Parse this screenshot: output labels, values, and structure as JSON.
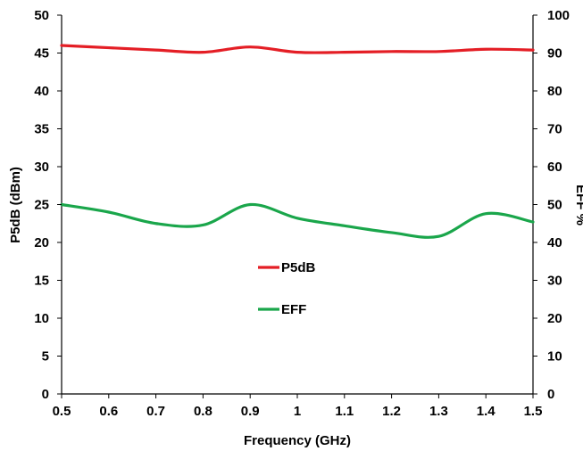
{
  "chart_data": {
    "type": "line",
    "title": "",
    "xlabel": "Frequency (GHz)",
    "ylabel": "P5dB (dBm)",
    "y2label": "EFF %",
    "xlim": [
      0.5,
      1.5
    ],
    "ylim": [
      0,
      50
    ],
    "y2lim": [
      0,
      100
    ],
    "x_ticks": [
      "0.5",
      "0.6",
      "0.7",
      "0.8",
      "0.9",
      "1",
      "1.1",
      "1.2",
      "1.3",
      "1.4",
      "1.5"
    ],
    "y_ticks": [
      "0",
      "5",
      "10",
      "15",
      "20",
      "25",
      "30",
      "35",
      "40",
      "45",
      "50"
    ],
    "y2_ticks": [
      "0",
      "10",
      "20",
      "30",
      "40",
      "50",
      "60",
      "70",
      "80",
      "90",
      "100"
    ],
    "grid": false,
    "legend_position": "center",
    "series": [
      {
        "name": "P5dB",
        "axis": "left",
        "color": "#e41e25",
        "x": [
          0.5,
          0.6,
          0.7,
          0.8,
          0.9,
          1.0,
          1.1,
          1.2,
          1.3,
          1.4,
          1.5
        ],
        "values": [
          46.0,
          45.7,
          45.4,
          45.1,
          45.8,
          45.1,
          45.1,
          45.2,
          45.2,
          45.5,
          45.4
        ]
      },
      {
        "name": "EFF",
        "axis": "right",
        "color": "#1aa64b",
        "x": [
          0.5,
          0.6,
          0.7,
          0.8,
          0.9,
          1.0,
          1.1,
          1.2,
          1.3,
          1.4,
          1.5
        ],
        "values": [
          50.0,
          48.0,
          45.0,
          44.6,
          50.0,
          46.4,
          44.4,
          42.6,
          41.6,
          47.6,
          45.4
        ]
      }
    ]
  }
}
